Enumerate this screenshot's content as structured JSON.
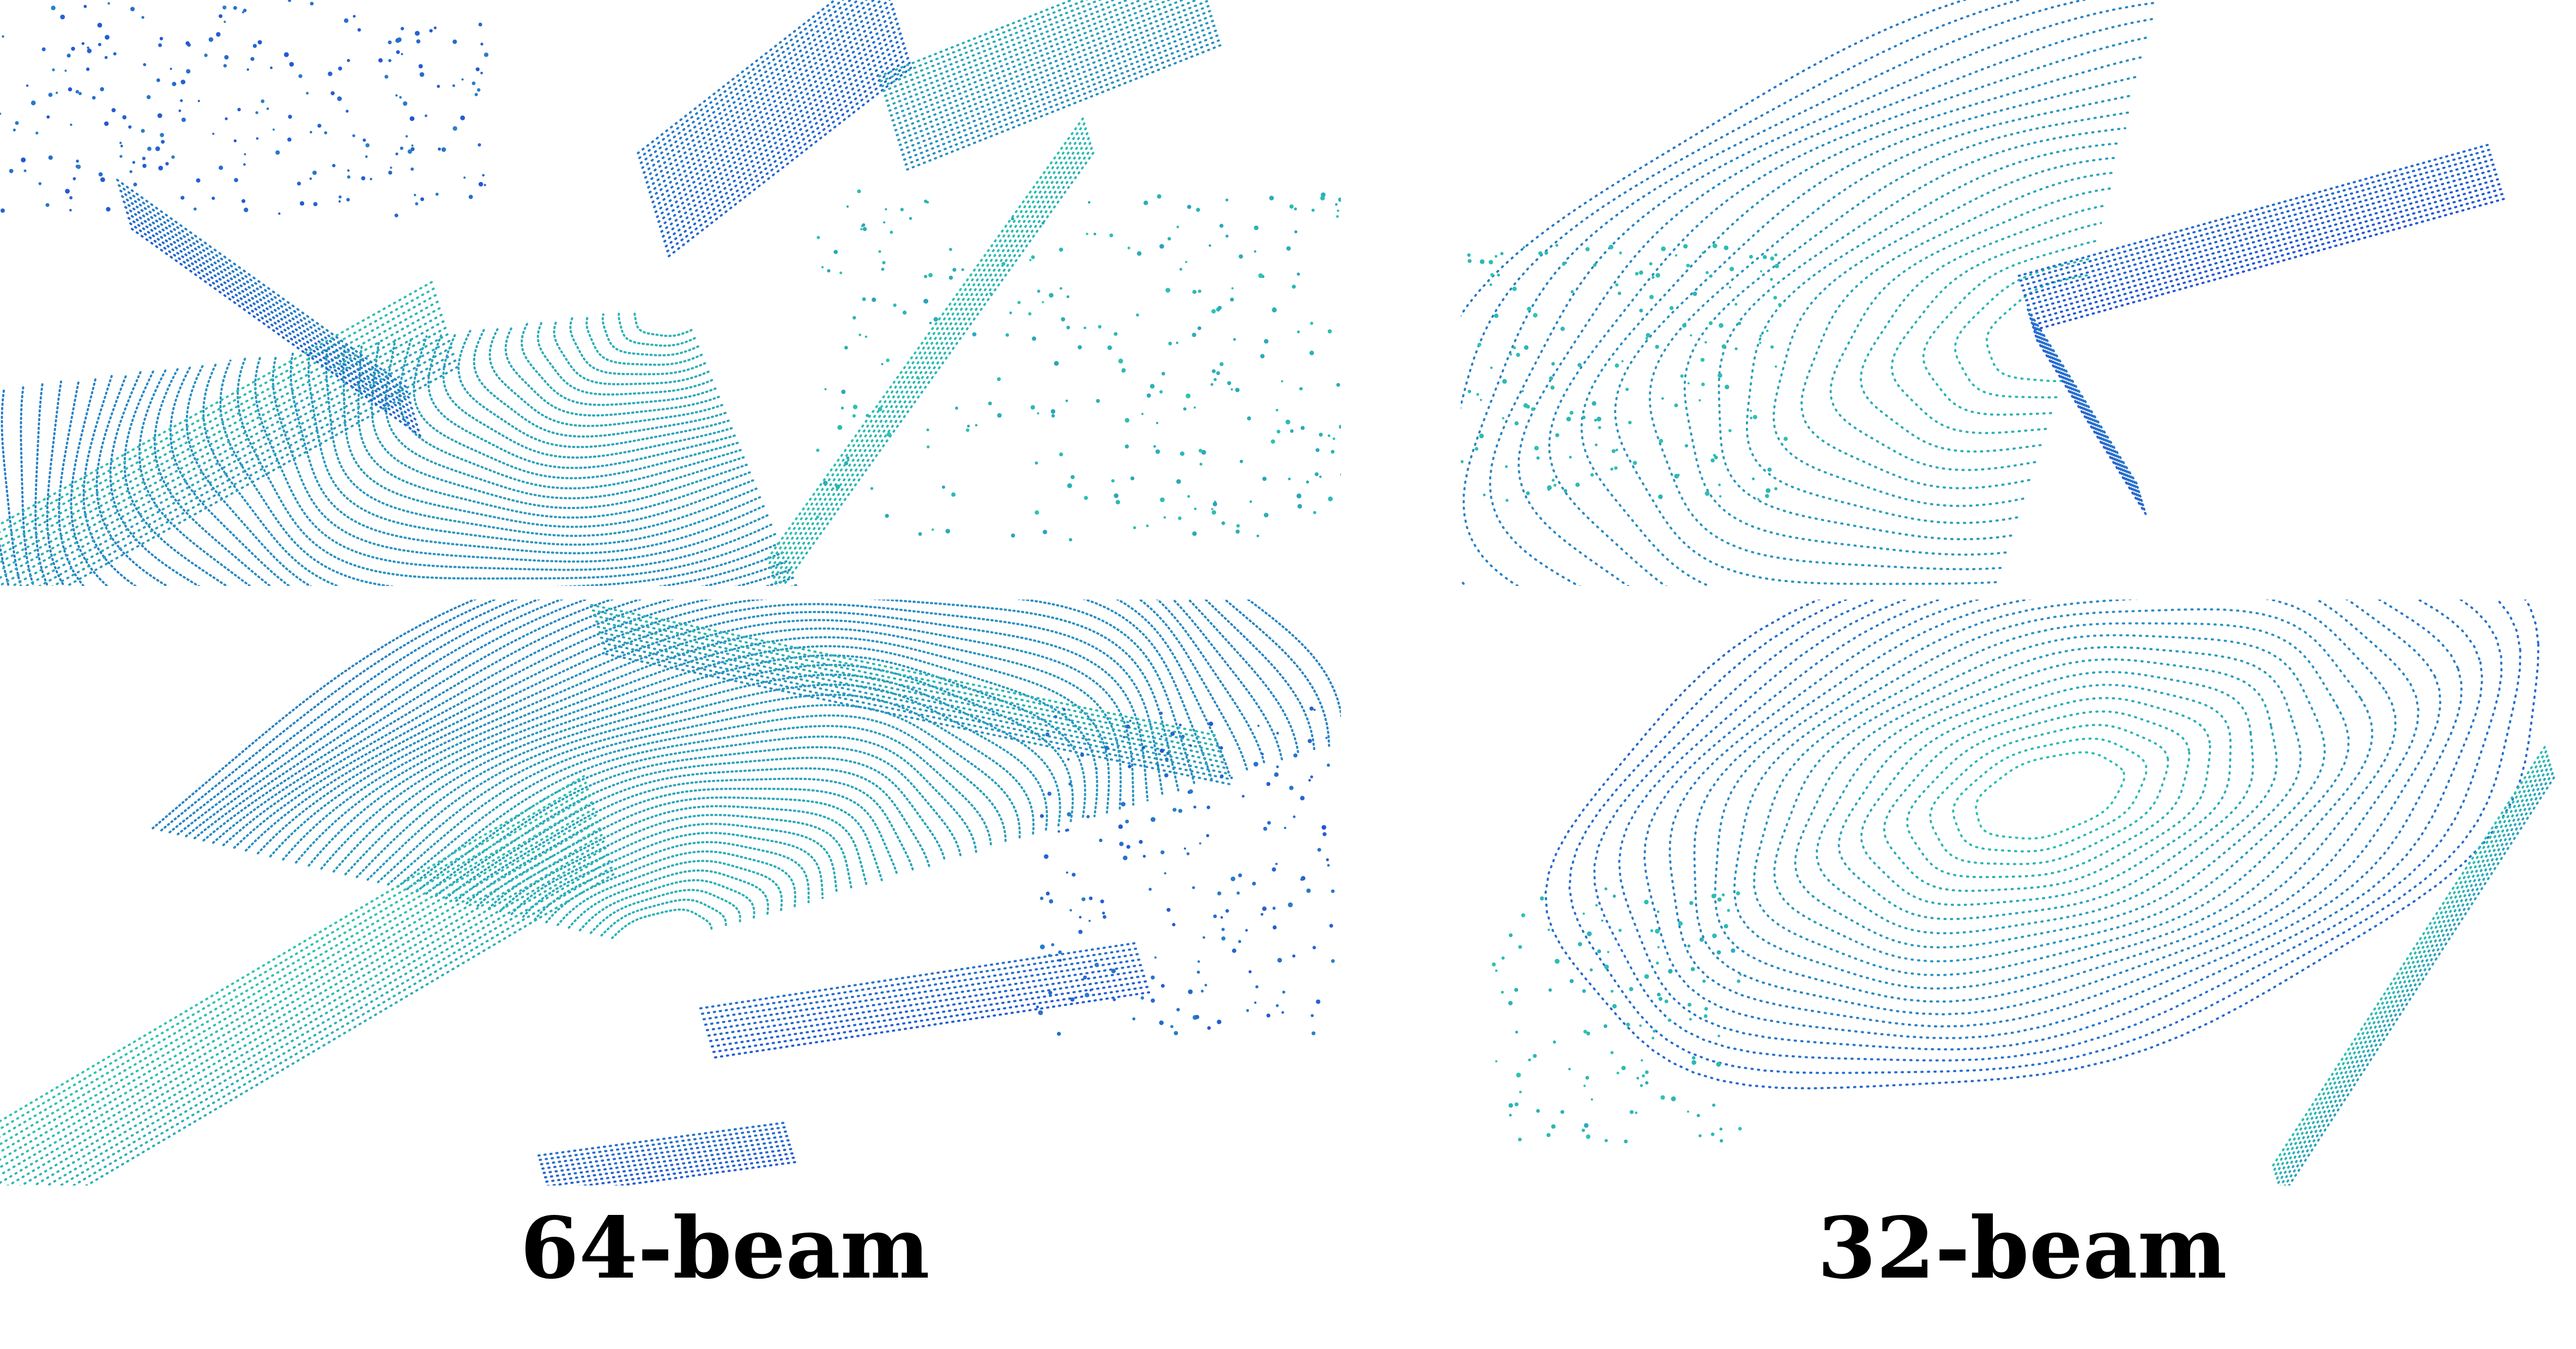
{
  "figure": {
    "colors": {
      "near": "#2ec4b0",
      "far": "#2456d6",
      "background": "#ffffff"
    },
    "columns": [
      {
        "caption": "64-beam"
      },
      {
        "caption": "32-beam"
      }
    ]
  }
}
